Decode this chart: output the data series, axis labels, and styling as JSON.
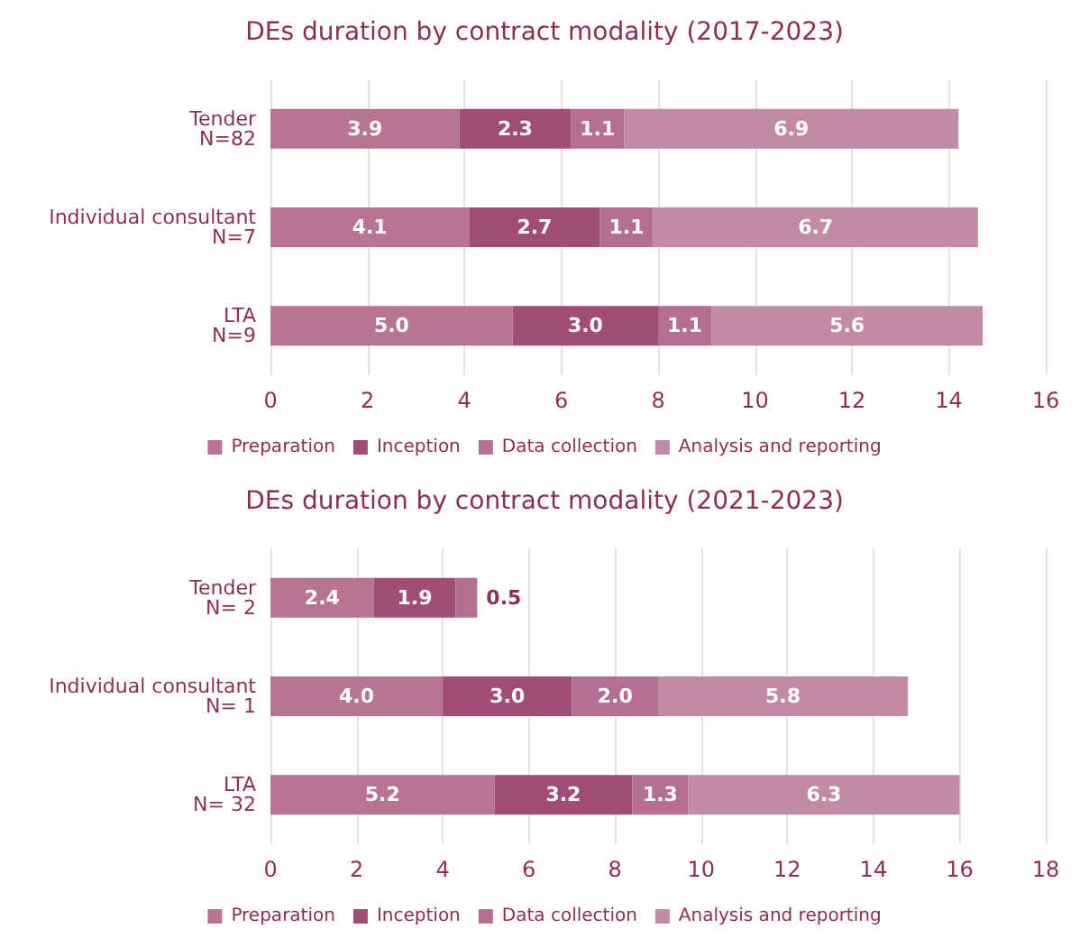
{
  "chart_data": [
    {
      "type": "bar",
      "title": "DEs duration by contract modality (2017-2023)",
      "orientation": "horizontal",
      "stacked": true,
      "categories": [
        "Tender\nN=82",
        "Individual consultant\nN=7",
        "LTA\nN=9"
      ],
      "series": [
        {
          "name": "Preparation",
          "color": "#b87495",
          "values": [
            3.9,
            4.1,
            5.0
          ],
          "value_labels": [
            "3.9",
            "4.1",
            "5.0"
          ]
        },
        {
          "name": "Inception",
          "color": "#a04c76",
          "values": [
            2.3,
            2.7,
            3.0
          ],
          "value_labels": [
            "2.3",
            "2.7",
            "3.0"
          ]
        },
        {
          "name": "Data collection",
          "color": "#b36e91",
          "values": [
            1.1,
            1.1,
            1.1
          ],
          "value_labels": [
            "1.1",
            "1.1",
            "1.1"
          ]
        },
        {
          "name": "Analysis and reporting",
          "color": "#c28aa7",
          "values": [
            6.9,
            6.7,
            5.6
          ],
          "value_labels": [
            "6.9",
            "6.7",
            "5.6"
          ]
        }
      ],
      "xlim": [
        0,
        16
      ],
      "xticks": [
        0,
        2,
        4,
        6,
        8,
        10,
        12,
        14,
        16
      ],
      "grid": "x",
      "legend": "bottom"
    },
    {
      "type": "bar",
      "title": "DEs duration by contract modality (2021-2023)",
      "orientation": "horizontal",
      "stacked": true,
      "categories": [
        "Tender\nN= 2",
        "Individual consultant\nN= 1",
        "LTA\nN= 32"
      ],
      "series": [
        {
          "name": "Preparation",
          "color": "#b87495",
          "values": [
            2.4,
            4.0,
            5.2
          ],
          "value_labels": [
            "2.4",
            "4.0",
            "5.2"
          ]
        },
        {
          "name": "Inception",
          "color": "#a04c76",
          "values": [
            1.9,
            3.0,
            3.2
          ],
          "value_labels": [
            "1.9",
            "3.0",
            "3.2"
          ]
        },
        {
          "name": "Data collection",
          "color": "#b36e91",
          "values": [
            0.5,
            2.0,
            1.3
          ],
          "value_labels": [
            "0.5",
            "2.0",
            "1.3"
          ]
        },
        {
          "name": "Analysis and reporting",
          "color": "#c28aa7",
          "values": [
            null,
            5.8,
            6.3
          ],
          "value_labels": [
            null,
            "5.8",
            "6.3"
          ]
        }
      ],
      "xlim": [
        0,
        18
      ],
      "xticks": [
        0,
        2,
        4,
        6,
        8,
        10,
        12,
        14,
        16,
        18
      ],
      "grid": "x",
      "legend": "bottom"
    }
  ]
}
